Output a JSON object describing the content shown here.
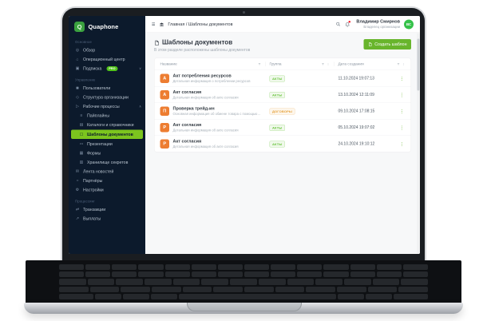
{
  "brand": "Quaphone",
  "sidebar": {
    "sections": [
      {
        "label": "Основное",
        "items": [
          {
            "id": "overview",
            "icon": "compass-icon",
            "label": "Обзор"
          },
          {
            "id": "operations-center",
            "icon": "building-icon",
            "label": "Операционный центр"
          },
          {
            "id": "subscription",
            "icon": "card-icon",
            "label": "Подписка",
            "badge": "PRO",
            "chevron": "down"
          }
        ]
      },
      {
        "label": "Управление",
        "items": [
          {
            "id": "users",
            "icon": "users-icon",
            "label": "Пользователи"
          },
          {
            "id": "org-structure",
            "icon": "structure-icon",
            "label": "Структура организации"
          },
          {
            "id": "workflows",
            "icon": "workflow-icon",
            "label": "Рабочие процессы",
            "chevron": "up",
            "children": [
              {
                "id": "pipelines",
                "icon": "pipeline-icon",
                "label": "Пайплайны"
              },
              {
                "id": "catalogs",
                "icon": "catalog-icon",
                "label": "Каталоги и справочники"
              },
              {
                "id": "document-templates",
                "icon": "document-icon",
                "label": "Шаблоны документов",
                "active": true
              },
              {
                "id": "presentations",
                "icon": "presentation-icon",
                "label": "Презентации"
              },
              {
                "id": "forms",
                "icon": "form-icon",
                "label": "Формы"
              },
              {
                "id": "secrets-storage",
                "icon": "vault-icon",
                "label": "Хранилище секретов"
              }
            ]
          },
          {
            "id": "news-feed",
            "icon": "news-icon",
            "label": "Лента новостей"
          },
          {
            "id": "partners",
            "icon": "partners-icon",
            "label": "Партнёры"
          },
          {
            "id": "settings",
            "icon": "gear-icon",
            "label": "Настройки"
          }
        ]
      },
      {
        "label": "Процессинг",
        "items": [
          {
            "id": "transactions",
            "icon": "transactions-icon",
            "label": "Транзакции"
          },
          {
            "id": "payouts",
            "icon": "payouts-icon",
            "label": "Выплаты"
          }
        ]
      }
    ]
  },
  "topbar": {
    "breadcrumb": "Главная / Шаблоны документов",
    "user": {
      "name": "Владимир Смирнов",
      "role": "Владелец организации",
      "avatar_initials": "ВС"
    }
  },
  "page": {
    "title": "Шаблоны документов",
    "subtitle": "В этом разделе расположены шаблоны документов",
    "create_button": "Создать шаблон"
  },
  "table": {
    "columns": [
      "Название",
      "Группа",
      "Дата создания"
    ],
    "rows": [
      {
        "letter": "А",
        "title": "Акт потребления ресурсов",
        "subtitle": "Детальная информация о потреблении ресурсов",
        "group": "АКТЫ",
        "group_type": "green",
        "date": "11.10.2024 19:07:13"
      },
      {
        "letter": "А",
        "title": "Акт согласия",
        "subtitle": "Детальная информация об акте согласия",
        "group": "АКТЫ",
        "group_type": "green",
        "date": "13.10.2024 12:11:09"
      },
      {
        "letter": "П",
        "title": "Проверка трейд-ин",
        "subtitle": "Основная информация об обмене товара с помощью услуги трейд-ин",
        "group": "ДОГОВОРЫ",
        "group_type": "orange",
        "date": "09.10.2024 17:08:15"
      },
      {
        "letter": "Р",
        "title": "Акт согласия",
        "subtitle": "Детальная информация об акте согласия",
        "group": "АКТЫ",
        "group_type": "green",
        "date": "05.10.2024 19:07:02"
      },
      {
        "letter": "Р",
        "title": "Акт согласия",
        "subtitle": "Детальная информация об акте согласия",
        "group": "АКТЫ",
        "group_type": "green",
        "date": "24.10.2024 19:10:12"
      }
    ]
  },
  "colors": {
    "accent_green": "#68b52c",
    "active_green": "#7cc51e",
    "sidebar_bg": "#0c1a2c",
    "row_icon_orange": "#ed7d31",
    "badge_green": "#67c23a",
    "badge_orange": "#e6a23c",
    "notification_red": "#f5222d"
  }
}
